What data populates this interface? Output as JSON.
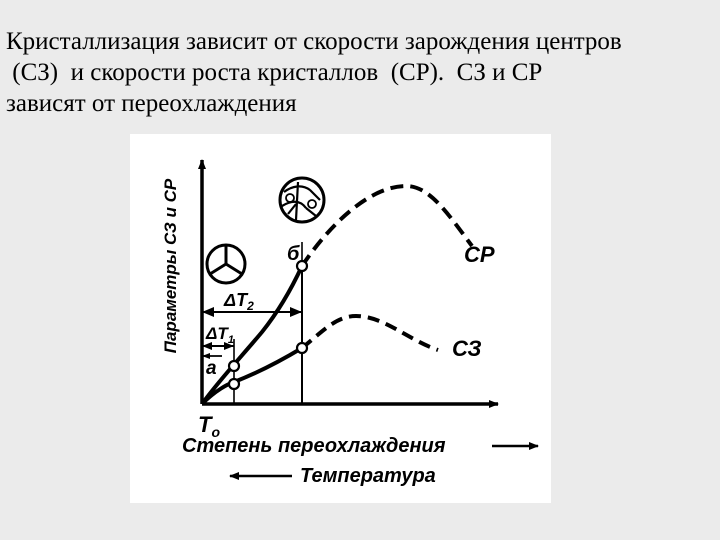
{
  "slide": {
    "lines": [
      "Кристаллизация зависит от скорости зарождения центров",
      " (СЗ)  и скорости роста кристаллов  (СР).  СЗ и СР",
      "зависят от переохлаждения"
    ]
  },
  "diagram": {
    "y_axis_label": "Параметры СЗ и СР",
    "x_axis_label": "Степень переохлаждения",
    "temperature_label": "Температура",
    "origin_label": "T",
    "origin_subscript": "o",
    "curve_sr_label": "СР",
    "curve_sz_label": "СЗ",
    "point_a_label": "а",
    "point_b_label": "б",
    "delta_t1_label": "ΔT",
    "delta_t1_sub": "1",
    "delta_t2_label": "ΔT",
    "delta_t2_sub": "2",
    "colors": {
      "ink": "#000000",
      "figure_bg": "#ffffff",
      "slide_bg": "#ebebeb"
    },
    "icons": [
      "small-crystal-icon",
      "large-crystal-icon"
    ]
  }
}
